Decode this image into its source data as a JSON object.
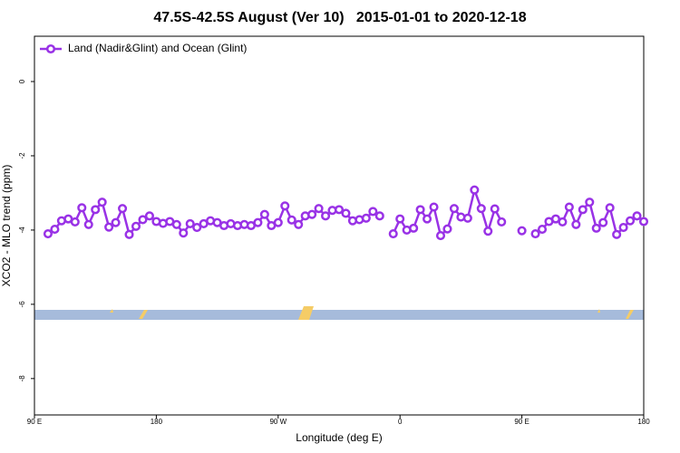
{
  "chart_data": {
    "type": "line",
    "title": "47.5S-42.5S August (Ver 10)   2015-01-01 to 2020-12-18",
    "xlabel": "Longitude (deg E)",
    "ylabel": "XCO2 - MLO trend (ppm)",
    "xlim": [
      90,
      540
    ],
    "ylim": [
      -8.98,
      1.22
    ],
    "xticks": [
      {
        "value": 90,
        "label": "90 E"
      },
      180,
      {
        "value": 270,
        "label": "90 W"
      },
      {
        "value": 360,
        "label": "0"
      },
      {
        "value": 450,
        "label": "90 E"
      },
      {
        "value": 540,
        "label": "180"
      }
    ],
    "yticks": [
      0,
      -2,
      -4,
      -6,
      -8
    ],
    "legend": "top-left",
    "x": [
      100,
      105,
      110,
      115,
      120,
      125,
      130,
      135,
      140,
      145,
      150,
      155,
      160,
      165,
      170,
      175,
      180,
      185,
      190,
      195,
      200,
      205,
      210,
      215,
      220,
      225,
      230,
      235,
      240,
      245,
      250,
      255,
      260,
      265,
      270,
      275,
      280,
      285,
      290,
      295,
      300,
      305,
      310,
      315,
      320,
      325,
      330,
      335,
      340,
      345,
      350,
      355,
      360,
      365,
      370,
      375,
      380,
      385,
      390,
      395,
      400,
      405,
      410,
      415,
      420,
      425,
      430,
      435,
      440,
      445,
      450,
      455,
      460,
      465,
      470,
      475,
      480,
      485,
      490,
      495,
      500,
      505,
      510,
      515,
      520,
      525,
      530,
      535,
      540
    ],
    "series": [
      {
        "name": "Land (Nadir&Glint) and Ocean (Glint)",
        "color": "#9932e6",
        "values": [
          -4.1,
          -3.98,
          -3.75,
          -3.7,
          -3.78,
          -3.4,
          -3.85,
          -3.45,
          -3.25,
          -3.92,
          -3.8,
          -3.42,
          -4.12,
          -3.9,
          -3.72,
          -3.62,
          -3.77,
          -3.82,
          -3.77,
          -3.85,
          -4.08,
          -3.83,
          -3.93,
          -3.83,
          -3.75,
          -3.8,
          -3.88,
          -3.83,
          -3.88,
          -3.85,
          -3.88,
          -3.8,
          -3.58,
          -3.88,
          -3.8,
          -3.35,
          -3.73,
          -3.85,
          -3.62,
          -3.58,
          -3.42,
          -3.62,
          -3.47,
          -3.45,
          -3.55,
          -3.75,
          -3.72,
          -3.68,
          -3.5,
          -3.62,
          null,
          -4.1,
          -3.7,
          -4.0,
          -3.95,
          -3.45,
          -3.7,
          -3.38,
          -4.15,
          -3.97,
          -3.42,
          -3.65,
          -3.68,
          -2.92,
          -3.42,
          -4.03,
          -3.43,
          -3.78,
          null,
          null,
          -4.02,
          null,
          -4.1,
          -3.98,
          -3.77,
          -3.7,
          -3.78,
          -3.38,
          -3.85,
          -3.45,
          -3.25,
          -3.95,
          -3.8,
          -3.4,
          -4.12,
          -3.93,
          -3.75,
          -3.62,
          -3.77
        ]
      }
    ]
  }
}
